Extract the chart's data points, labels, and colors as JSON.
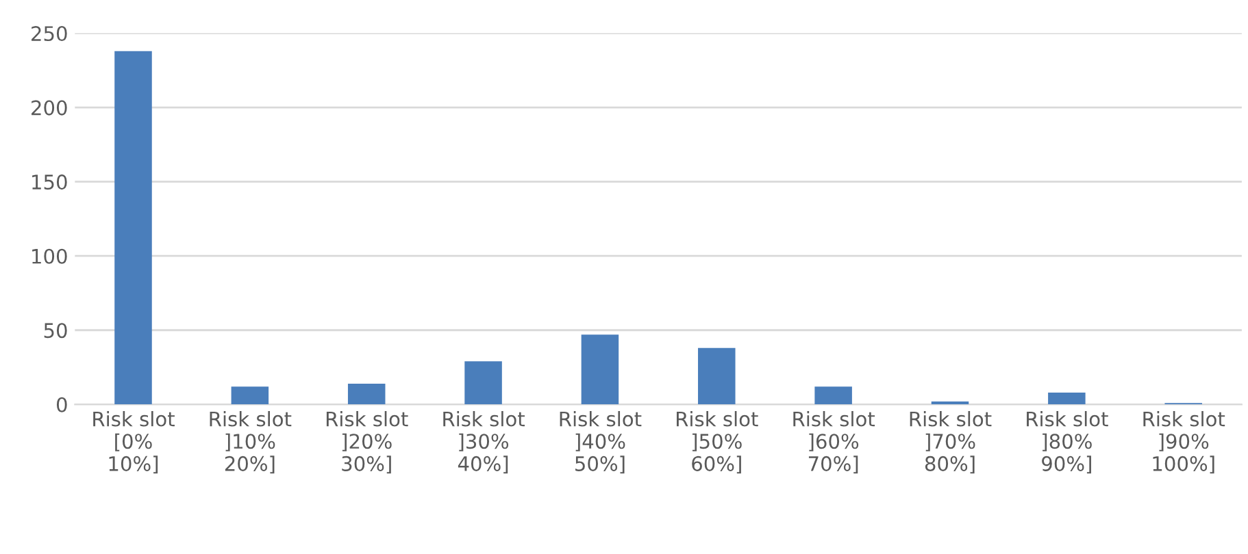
{
  "chart_data": {
    "type": "bar",
    "categories": [
      "Risk slot\n[0%\n10%]",
      "Risk slot\n]10%\n20%]",
      "Risk slot\n]20%\n30%]",
      "Risk slot\n]30%\n40%]",
      "Risk slot\n]40%\n50%]",
      "Risk slot\n]50%\n60%]",
      "Risk slot\n]60%\n70%]",
      "Risk slot\n]70%\n80%]",
      "Risk slot\n]80%\n90%]",
      "Risk slot\n]90%\n100%]"
    ],
    "values": [
      238,
      12,
      14,
      29,
      47,
      38,
      12,
      2,
      8,
      1
    ],
    "color": "#4a7ebb",
    "ylim": [
      0,
      250
    ],
    "yticks": [
      0,
      50,
      100,
      150,
      200,
      250
    ],
    "grid": "y"
  }
}
